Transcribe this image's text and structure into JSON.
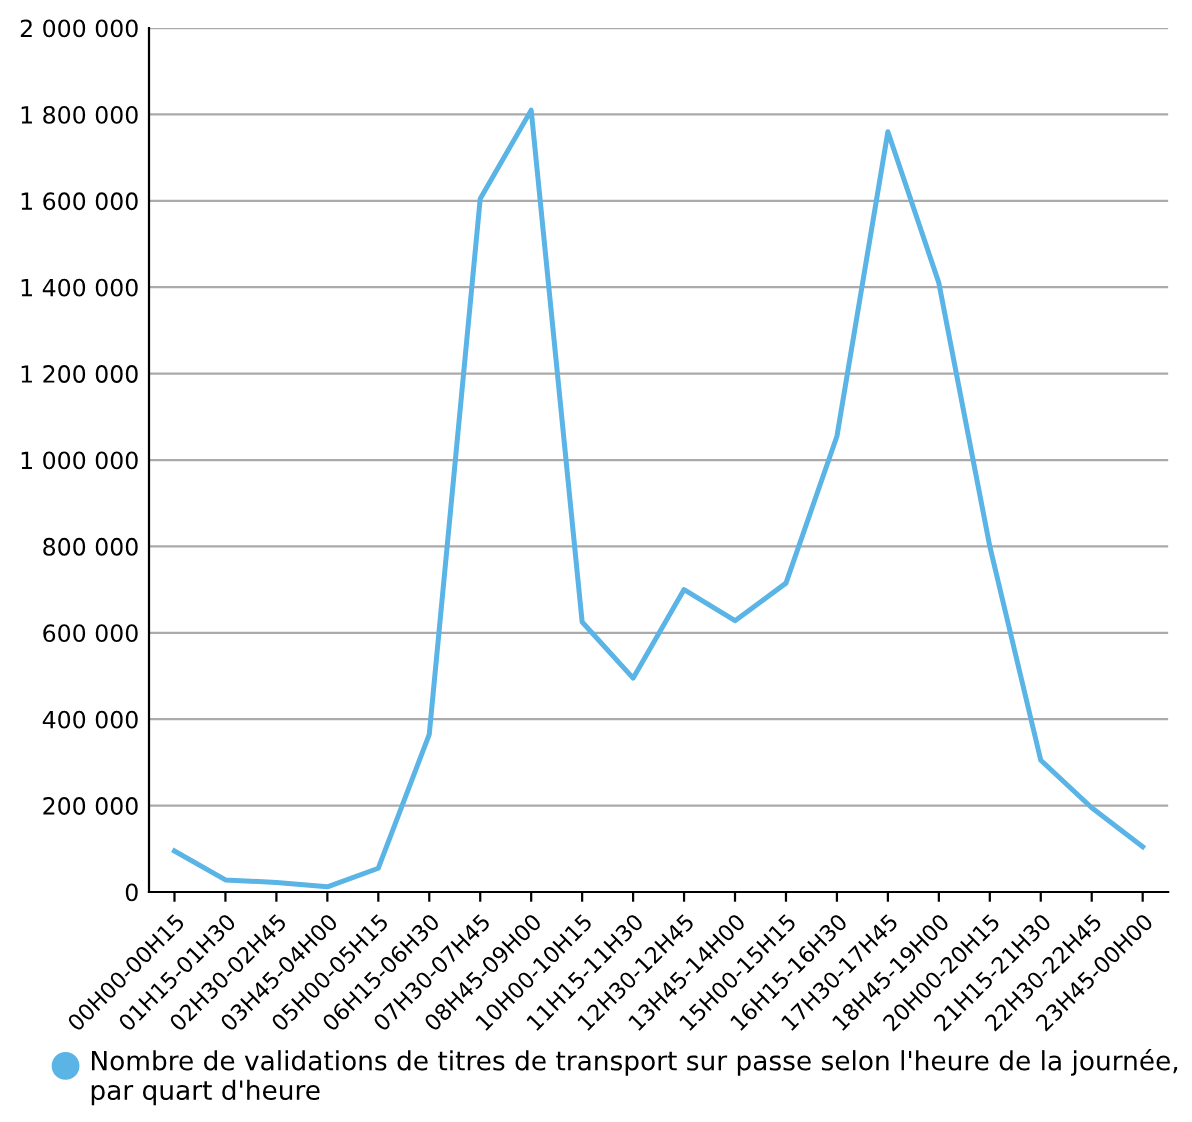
{
  "chart_data": {
    "type": "line",
    "categories": [
      "00H00-00H15",
      "01H15-01H30",
      "02H30-02H45",
      "03H45-04H00",
      "05H00-05H15",
      "06H15-06H30",
      "07H30-07H45",
      "08H45-09H00",
      "10H00-10H15",
      "11H15-11H30",
      "12H30-12H45",
      "13H45-14H00",
      "15H00-15H15",
      "16H15-16H30",
      "17H30-17H45",
      "18H45-19H00",
      "20H00-20H15",
      "21H15-21H30",
      "22H30-22H45",
      "23H45-00H00"
    ],
    "series": [
      {
        "name": "Nombre de validations de titres de transport sur passe selon l'heure de la journée, par quart d'heure",
        "color": "#5ab4e5",
        "values": [
          95000,
          28000,
          22000,
          12000,
          55000,
          365000,
          1605000,
          1810000,
          625000,
          495000,
          700000,
          628000,
          715000,
          1055000,
          1760000,
          1410000,
          800000,
          305000,
          195000,
          105000
        ]
      }
    ],
    "ylim": [
      0,
      2000000
    ],
    "yticks": [
      {
        "value": 0,
        "label": "0"
      },
      {
        "value": 200000,
        "label": "200 000"
      },
      {
        "value": 400000,
        "label": "400 000"
      },
      {
        "value": 600000,
        "label": "600 000"
      },
      {
        "value": 800000,
        "label": "800 000"
      },
      {
        "value": 1000000,
        "label": "1 000 000"
      },
      {
        "value": 1200000,
        "label": "1 200 000"
      },
      {
        "value": 1400000,
        "label": "1 400 000"
      },
      {
        "value": 1600000,
        "label": "1 600 000"
      },
      {
        "value": 1800000,
        "label": "1 800 000"
      },
      {
        "value": 2000000,
        "label": "2 000 000"
      }
    ],
    "grid": "y",
    "legend": "bottom",
    "marker": "none",
    "line_style": "solid"
  }
}
